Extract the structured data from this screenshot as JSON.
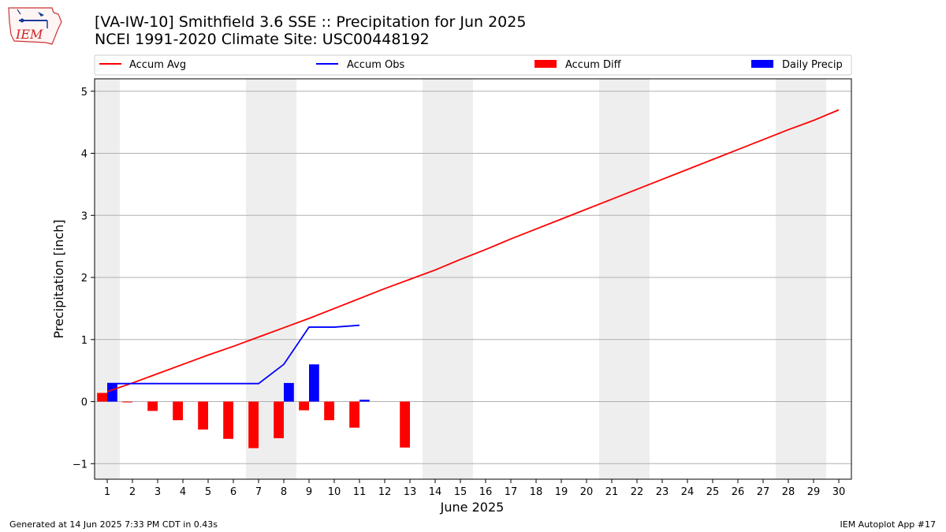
{
  "header": {
    "title_line1": "[VA-IW-10] Smithfield 3.6 SSE :: Precipitation for Jun 2025",
    "title_line2": "NCEI 1991-2020 Climate Site: USC00448192"
  },
  "logo": {
    "text": "IEM",
    "icon": "iem-iowa-state-logo"
  },
  "footer": {
    "left": "Generated at 14 Jun 2025 7:33 PM CDT in 0.43s",
    "right": "IEM Autoplot App #17"
  },
  "colors": {
    "avg": "#ff0000",
    "obs": "#0000ff",
    "diff": "#ff0000",
    "daily": "#0000ff",
    "shade": "#eeeeee",
    "grid": "#b0b0b0"
  },
  "chart_data": {
    "type": "bar",
    "xlabel": "June 2025",
    "ylabel": "Precipitation [inch]",
    "xlim": [
      0.5,
      30.5
    ],
    "ylim": [
      -1.25,
      5.2
    ],
    "x_ticks": [
      1,
      2,
      3,
      4,
      5,
      6,
      7,
      8,
      9,
      10,
      11,
      12,
      13,
      14,
      15,
      16,
      17,
      18,
      19,
      20,
      21,
      22,
      23,
      24,
      25,
      26,
      27,
      28,
      29,
      30
    ],
    "y_ticks": [
      -1,
      0,
      1,
      2,
      3,
      4,
      5
    ],
    "grid": "horizontal",
    "weekend_shading": [
      [
        0.5,
        1.5
      ],
      [
        6.5,
        8.5
      ],
      [
        13.5,
        15.5
      ],
      [
        20.5,
        22.5
      ],
      [
        27.5,
        29.5
      ]
    ],
    "legend": {
      "placement": "top",
      "entries": [
        "Accum Avg",
        "Accum Obs",
        "Accum Diff",
        "Daily Precip"
      ]
    },
    "series": [
      {
        "name": "Accum Avg",
        "kind": "line",
        "x": [
          1,
          2,
          3,
          4,
          5,
          6,
          7,
          8,
          9,
          10,
          11,
          12,
          13,
          14,
          15,
          16,
          17,
          18,
          19,
          20,
          21,
          22,
          23,
          24,
          25,
          26,
          27,
          28,
          29,
          30
        ],
        "values": [
          0.16,
          0.3,
          0.45,
          0.6,
          0.75,
          0.89,
          1.04,
          1.19,
          1.34,
          1.5,
          1.66,
          1.82,
          1.97,
          2.12,
          2.29,
          2.45,
          2.62,
          2.78,
          2.94,
          3.1,
          3.26,
          3.42,
          3.58,
          3.74,
          3.9,
          4.06,
          4.22,
          4.38,
          4.53,
          4.7
        ]
      },
      {
        "name": "Accum Obs",
        "kind": "line",
        "x": [
          1,
          2,
          3,
          4,
          5,
          6,
          7,
          8,
          9,
          10,
          11
        ],
        "values": [
          0.29,
          0.29,
          0.29,
          0.29,
          0.29,
          0.29,
          0.29,
          0.6,
          1.2,
          1.2,
          1.23
        ]
      },
      {
        "name": "Accum Diff",
        "kind": "bar",
        "x": [
          1,
          2,
          3,
          4,
          5,
          6,
          7,
          8,
          9,
          10,
          11,
          13
        ],
        "values": [
          0.14,
          -0.01,
          -0.15,
          -0.3,
          -0.45,
          -0.6,
          -0.75,
          -0.59,
          -0.14,
          -0.3,
          -0.42,
          -0.74
        ]
      },
      {
        "name": "Daily Precip",
        "kind": "bar",
        "x": [
          1,
          8,
          9,
          11
        ],
        "values": [
          0.29,
          0.3,
          0.6,
          0.03
        ]
      }
    ]
  }
}
